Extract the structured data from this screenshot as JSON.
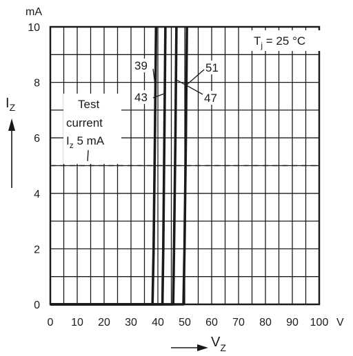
{
  "chart_data": {
    "type": "line",
    "y_unit": "mA",
    "x_unit": "V",
    "ylabel_main": "I",
    "ylabel_sub": "Z",
    "xlabel_main": "V",
    "xlabel_sub": "Z",
    "xlim": [
      0,
      100
    ],
    "ylim": [
      0,
      10
    ],
    "x_ticks": [
      0,
      10,
      20,
      30,
      40,
      50,
      60,
      70,
      80,
      90,
      100
    ],
    "x_tick_labels": [
      "0",
      "10",
      "20",
      "30",
      "40",
      "50",
      "60",
      "70",
      "80",
      "90",
      "100"
    ],
    "y_ticks": [
      0,
      2,
      4,
      6,
      8,
      10
    ],
    "y_tick_labels": [
      "0",
      "2",
      "4",
      "6",
      "8",
      "10"
    ],
    "grid": true,
    "temperature": {
      "main": "T",
      "sub": "j",
      "rest": " = 25 °C"
    },
    "test_current": {
      "line1": "Test",
      "line2": "current",
      "line3_main": "I",
      "line3_sub": "z",
      "line3_rest": " 5 mA",
      "y": 5
    },
    "series": [
      {
        "name": "39",
        "x": [
          0,
          38.0,
          38.4,
          38.9,
          39.3
        ],
        "y": [
          0,
          0,
          2,
          6,
          10
        ]
      },
      {
        "name": "43",
        "x": [
          0,
          41.7,
          42.0,
          42.4,
          42.8
        ],
        "y": [
          0,
          0,
          2,
          6,
          10
        ]
      },
      {
        "name": "47",
        "x": [
          0,
          45.7,
          46.0,
          46.5,
          46.9
        ],
        "y": [
          0,
          0,
          2,
          6,
          10
        ]
      },
      {
        "name": "51",
        "x": [
          0,
          49.5,
          49.9,
          50.4,
          50.8
        ],
        "y": [
          0,
          0,
          2,
          6,
          10
        ]
      }
    ]
  }
}
